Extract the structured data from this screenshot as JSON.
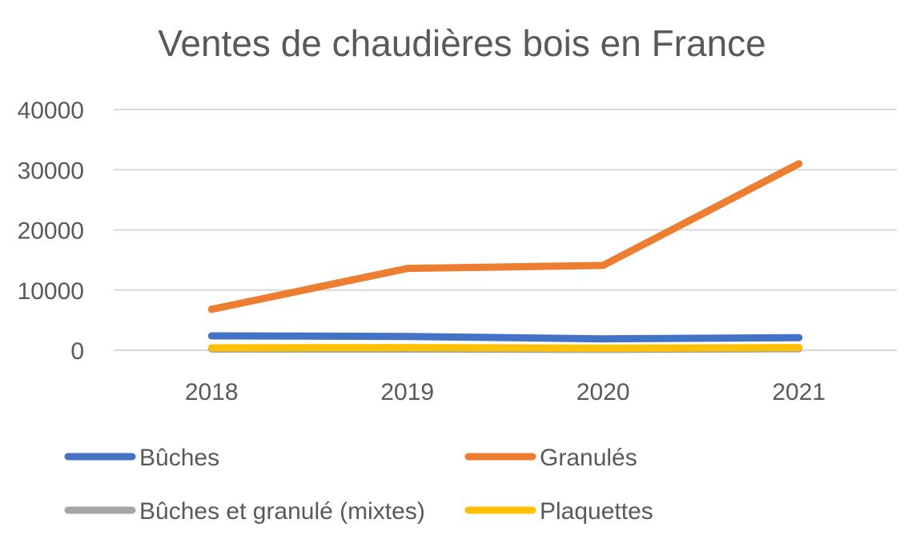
{
  "chart_data": {
    "type": "line",
    "title": "Ventes de chaudières bois en France",
    "xlabel": "",
    "ylabel": "",
    "categories": [
      "2018",
      "2019",
      "2020",
      "2021"
    ],
    "ylim": [
      0,
      40000
    ],
    "yticks": [
      0,
      10000,
      20000,
      30000,
      40000
    ],
    "ytick_labels": [
      "0",
      "10000",
      "20000",
      "30000",
      "40000"
    ],
    "grid": true,
    "legend_position": "bottom",
    "series": [
      {
        "name": "Bûches",
        "color": "#4472c4",
        "values": [
          2400,
          2300,
          1900,
          2100
        ]
      },
      {
        "name": "Granulés",
        "color": "#ed7d31",
        "values": [
          6800,
          13600,
          14100,
          31000
        ]
      },
      {
        "name": "Bûches et granulé (mixtes)",
        "color": "#a5a5a5",
        "values": [
          200,
          200,
          150,
          250
        ]
      },
      {
        "name": "Plaquettes",
        "color": "#ffc000",
        "values": [
          400,
          450,
          350,
          450
        ]
      }
    ]
  }
}
